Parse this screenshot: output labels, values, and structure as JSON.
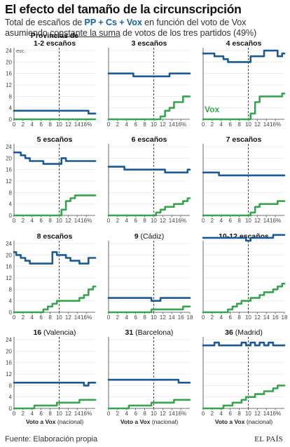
{
  "title": "El efecto del tamaño de la circunscripción",
  "subtitle": {
    "part1": "Total de escaños de ",
    "parties": "PP + Cs + Vox",
    "part2": " en función del voto de Vox",
    "part3": "asumiendo ",
    "underlined": "constante la suma",
    "part4": " de votos de los tres partidos (49%)"
  },
  "footer": {
    "source": "Fuente: Elaboración propia",
    "brand": "EL PAÍS"
  },
  "colors": {
    "blue": "#1d5a92",
    "green": "#3aa352",
    "axis": "#444444",
    "dashed": "#333333"
  },
  "y_unit_label": "esc.",
  "series_label": "Vox",
  "x_axis_label": {
    "bold": "Voto a Vox",
    "normal": "(nacional)"
  },
  "chart_data": [
    {
      "type": "line",
      "title_bold": "Provincias de\n1-2 escaños",
      "title_normal": "",
      "x": [
        0,
        1,
        2,
        3,
        4,
        5,
        6,
        7,
        8,
        9,
        10,
        11,
        12,
        13,
        14,
        15,
        16,
        17,
        18
      ],
      "xticks": [
        "0",
        "2",
        "4",
        "6",
        "8",
        "10",
        "12",
        "14",
        "16%"
      ],
      "yticks": [
        "0",
        "4",
        "8",
        "12",
        "16",
        "20",
        "24"
      ],
      "ylim": [
        0,
        25
      ],
      "series": [
        {
          "values": [
            3,
            3,
            3,
            3,
            3,
            3,
            3,
            3,
            3,
            3,
            3,
            3,
            3,
            3,
            3,
            3,
            3,
            2,
            2
          ]
        },
        {
          "values": [
            0,
            0,
            0,
            0,
            0,
            0,
            0,
            0,
            0,
            0,
            0,
            0,
            0,
            0,
            0,
            0,
            0,
            0,
            0
          ]
        }
      ]
    },
    {
      "type": "line",
      "title_bold": "3 escaños",
      "title_normal": "",
      "x": [
        0,
        1,
        2,
        3,
        4,
        5,
        6,
        7,
        8,
        9,
        10,
        11,
        12,
        13,
        14,
        15,
        16,
        17,
        18
      ],
      "xticks": [
        "0",
        "2",
        "4",
        "6",
        "8",
        "10",
        "12",
        "14",
        "16%"
      ],
      "yticks": [
        "0",
        "4",
        "8",
        "12",
        "16",
        "20",
        "24"
      ],
      "ylim": [
        0,
        25
      ],
      "series": [
        {
          "values": [
            16,
            16,
            16,
            16,
            16,
            16,
            15,
            15,
            15,
            15,
            15,
            15,
            15,
            15,
            16,
            16,
            16,
            16,
            16
          ]
        },
        {
          "values": [
            0,
            0,
            0,
            0,
            0,
            0,
            0,
            0,
            0,
            0,
            0,
            0,
            1,
            3,
            4,
            6,
            6,
            8,
            8
          ]
        }
      ]
    },
    {
      "type": "line",
      "title_bold": "4 escaños",
      "title_normal": "",
      "x": [
        0,
        1,
        2,
        3,
        4,
        5,
        6,
        7,
        8,
        9,
        10,
        11,
        12,
        13,
        14,
        15,
        16,
        17,
        18
      ],
      "xticks": [
        "0",
        "2",
        "4",
        "6",
        "8",
        "10",
        "12",
        "14",
        "16%"
      ],
      "yticks": [
        "0",
        "4",
        "8",
        "12",
        "16",
        "20",
        "24"
      ],
      "ylim": [
        0,
        25
      ],
      "series": [
        {
          "values": [
            23,
            23,
            23,
            22,
            22,
            21,
            20,
            20,
            20,
            20,
            20,
            22,
            22,
            22,
            24,
            24,
            24,
            22,
            23
          ]
        },
        {
          "values": [
            0,
            0,
            0,
            0,
            0,
            0,
            0,
            0,
            0,
            0,
            0,
            2,
            6,
            8,
            8,
            8,
            8,
            8,
            9
          ]
        }
      ]
    },
    {
      "type": "line",
      "title_bold": "5 escaños",
      "title_normal": "",
      "x": [
        0,
        1,
        2,
        3,
        4,
        5,
        6,
        7,
        8,
        9,
        10,
        11,
        12,
        13,
        14,
        15,
        16,
        17,
        18
      ],
      "xticks": [
        "0",
        "2",
        "4",
        "6",
        "8",
        "10",
        "12",
        "14",
        "16%"
      ],
      "yticks": [
        "0",
        "4",
        "8",
        "12",
        "16",
        "20",
        "24"
      ],
      "ylim": [
        0,
        25
      ],
      "series": [
        {
          "values": [
            22,
            22,
            21,
            20,
            19,
            19,
            19,
            18,
            18,
            18,
            18,
            20,
            19,
            19,
            19,
            19,
            19,
            19,
            19
          ]
        },
        {
          "values": [
            0,
            0,
            0,
            0,
            0,
            0,
            0,
            0,
            0,
            0,
            0,
            2,
            5,
            6,
            7,
            7,
            7,
            7,
            7
          ]
        }
      ]
    },
    {
      "type": "line",
      "title_bold": "6 escaños",
      "title_normal": "",
      "x": [
        0,
        1,
        2,
        3,
        4,
        5,
        6,
        7,
        8,
        9,
        10,
        11,
        12,
        13,
        14,
        15,
        16,
        17,
        18
      ],
      "xticks": [
        "0",
        "2",
        "4",
        "6",
        "8",
        "10",
        "12",
        "14",
        "16%"
      ],
      "yticks": [
        "0",
        "4",
        "8",
        "12",
        "16",
        "20",
        "24"
      ],
      "ylim": [
        0,
        25
      ],
      "series": [
        {
          "values": [
            17,
            17,
            17,
            17,
            16,
            16,
            16,
            16,
            16,
            16,
            16,
            16,
            16,
            15,
            15,
            15,
            15,
            15,
            16
          ]
        },
        {
          "values": [
            0,
            0,
            0,
            0,
            0,
            0,
            0,
            0,
            0,
            0,
            0,
            1,
            2,
            3,
            3,
            4,
            4,
            5,
            6
          ]
        }
      ]
    },
    {
      "type": "line",
      "title_bold": "7 escaños",
      "title_normal": "",
      "x": [
        0,
        1,
        2,
        3,
        4,
        5,
        6,
        7,
        8,
        9,
        10,
        11,
        12,
        13,
        14,
        15,
        16,
        17,
        18
      ],
      "xticks": [
        "0",
        "2",
        "4",
        "6",
        "8",
        "10",
        "12",
        "14",
        "16%"
      ],
      "yticks": [
        "0",
        "4",
        "8",
        "12",
        "16",
        "20",
        "24"
      ],
      "ylim": [
        0,
        25
      ],
      "series": [
        {
          "values": [
            15,
            15,
            15,
            15,
            14,
            14,
            14,
            14,
            14,
            14,
            14,
            14,
            14,
            14,
            14,
            14,
            14,
            14,
            14
          ]
        },
        {
          "values": [
            0,
            0,
            0,
            0,
            0,
            0,
            0,
            0,
            0,
            0,
            0,
            1,
            3,
            4,
            4,
            4,
            4,
            5,
            5
          ]
        }
      ]
    },
    {
      "type": "line",
      "title_bold": "8 escaños",
      "title_normal": "",
      "x": [
        0,
        1,
        2,
        3,
        4,
        5,
        6,
        7,
        8,
        9,
        10,
        11,
        12,
        13,
        14,
        15,
        16,
        17,
        18
      ],
      "xticks": [
        "0",
        "2",
        "4",
        "6",
        "8",
        "10",
        "12",
        "14",
        "16%"
      ],
      "yticks": [
        "0",
        "4",
        "8",
        "12",
        "16",
        "20",
        "24"
      ],
      "ylim": [
        0,
        25
      ],
      "series": [
        {
          "values": [
            21,
            20,
            19,
            18,
            17,
            17,
            17,
            17,
            17,
            21,
            20,
            20,
            19,
            18,
            18,
            17,
            17,
            19,
            19
          ]
        },
        {
          "values": [
            0,
            0,
            0,
            0,
            0,
            0,
            0,
            1,
            2,
            3,
            4,
            4,
            4,
            4,
            4,
            5,
            6,
            8,
            9
          ]
        }
      ]
    },
    {
      "type": "line",
      "title_bold": "9",
      "title_normal": "(Cádiz)",
      "x": [
        0,
        1,
        2,
        3,
        4,
        5,
        6,
        7,
        8,
        9,
        10,
        11,
        12,
        13,
        14,
        15,
        16,
        17,
        18
      ],
      "xticks": [
        "0",
        "2",
        "4",
        "6",
        "8",
        "10",
        "12",
        "14",
        "16",
        "18"
      ],
      "yticks": [
        "0",
        "4",
        "8",
        "12",
        "16",
        "20",
        "24"
      ],
      "ylim": [
        0,
        25
      ],
      "series": [
        {
          "values": [
            5,
            5,
            5,
            5,
            5,
            5,
            5,
            5,
            5,
            5,
            4,
            4,
            5,
            5,
            5,
            5,
            5,
            5,
            5
          ]
        },
        {
          "values": [
            0,
            0,
            0,
            0,
            0,
            0,
            0,
            0,
            0,
            0,
            1,
            1,
            1,
            1,
            1,
            1,
            1,
            2,
            2
          ]
        }
      ]
    },
    {
      "type": "line",
      "title_bold": "10-12 escaños",
      "title_normal": "",
      "x": [
        0,
        1,
        2,
        3,
        4,
        5,
        6,
        7,
        8,
        9,
        10,
        11,
        12,
        13,
        14,
        15,
        16,
        17,
        18
      ],
      "xticks": [
        "0",
        "2",
        "4",
        "6",
        "8",
        "10",
        "12",
        "14",
        "16",
        "18"
      ],
      "yticks": [
        "0",
        "4",
        "8",
        "12",
        "16",
        "20",
        "24"
      ],
      "ylim": [
        0,
        25
      ],
      "series": [
        {
          "values": [
            26,
            26,
            26,
            26,
            26,
            26,
            26,
            26,
            26,
            26,
            25,
            26,
            26,
            26,
            26,
            26,
            27,
            27,
            27
          ]
        },
        {
          "values": [
            0,
            0,
            0,
            0,
            0,
            0,
            1,
            2,
            3,
            4,
            4,
            5,
            5,
            6,
            7,
            7,
            8,
            9,
            10
          ]
        }
      ]
    },
    {
      "type": "line",
      "title_bold": "16",
      "title_normal": "(Valencia)",
      "x": [
        0,
        1,
        2,
        3,
        4,
        5,
        6,
        7,
        8,
        9,
        10,
        11,
        12,
        13,
        14,
        15,
        16,
        17,
        18
      ],
      "xticks": [
        "0",
        "2",
        "4",
        "6",
        "8",
        "10",
        "12",
        "14",
        "16%"
      ],
      "yticks": [
        "0",
        "4",
        "8",
        "12",
        "16",
        "20",
        "24"
      ],
      "ylim": [
        0,
        25
      ],
      "series": [
        {
          "values": [
            9,
            9,
            9,
            9,
            9,
            9,
            9,
            9,
            9,
            9,
            9,
            9,
            9,
            9,
            9,
            9,
            8,
            9,
            9
          ]
        },
        {
          "values": [
            0,
            0,
            0,
            0,
            0,
            1,
            1,
            1,
            1,
            1,
            2,
            2,
            2,
            2,
            2,
            3,
            3,
            3,
            3
          ]
        }
      ]
    },
    {
      "type": "line",
      "title_bold": "31",
      "title_normal": "(Barcelona)",
      "x": [
        0,
        1,
        2,
        3,
        4,
        5,
        6,
        7,
        8,
        9,
        10,
        11,
        12,
        13,
        14,
        15,
        16,
        17,
        18
      ],
      "xticks": [
        "0",
        "2",
        "4",
        "6",
        "8",
        "10",
        "12",
        "14",
        "16%"
      ],
      "yticks": [
        "0",
        "4",
        "8",
        "12",
        "16",
        "20",
        "24"
      ],
      "ylim": [
        0,
        25
      ],
      "series": [
        {
          "values": [
            10,
            10,
            10,
            10,
            10,
            10,
            10,
            10,
            10,
            10,
            10,
            10,
            10,
            10,
            10,
            10,
            9,
            9,
            9
          ]
        },
        {
          "values": [
            0,
            0,
            0,
            0,
            0,
            1,
            1,
            1,
            1,
            1,
            2,
            2,
            2,
            2,
            2,
            3,
            3,
            3,
            3
          ]
        }
      ]
    },
    {
      "type": "line",
      "title_bold": "36",
      "title_normal": "(Madrid)",
      "x": [
        0,
        1,
        2,
        3,
        4,
        5,
        6,
        7,
        8,
        9,
        10,
        11,
        12,
        13,
        14,
        15,
        16,
        17,
        18
      ],
      "xticks": [
        "0",
        "2",
        "4",
        "6",
        "8",
        "10",
        "12",
        "14",
        "16%"
      ],
      "yticks": [
        "0",
        "4",
        "8",
        "12",
        "16",
        "20",
        "24"
      ],
      "ylim": [
        0,
        25
      ],
      "series": [
        {
          "values": [
            22,
            22,
            22,
            23,
            22,
            22,
            22,
            22,
            22,
            23,
            22,
            23,
            22,
            23,
            22,
            23,
            22,
            22,
            22
          ]
        },
        {
          "values": [
            0,
            0,
            0,
            0,
            0,
            1,
            1,
            2,
            2,
            3,
            4,
            4,
            5,
            5,
            6,
            6,
            7,
            8,
            8
          ]
        }
      ]
    }
  ]
}
